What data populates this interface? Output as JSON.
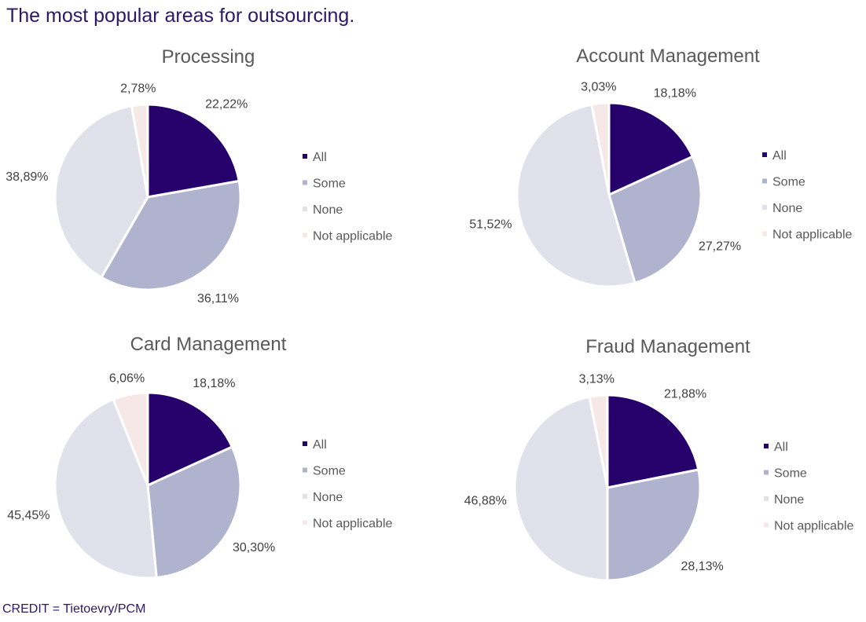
{
  "title": "The most popular areas for outsourcing.",
  "credit": "CREDIT = Tietoevry/PCM",
  "colors": {
    "All": "#26006b",
    "Some": "#b0b3ce",
    "None": "#e1e1eb",
    "Not applicable": "#f5e8e6"
  },
  "chart_data": [
    {
      "type": "pie",
      "title": "Processing",
      "categories": [
        "All",
        "Some",
        "None",
        "Not applicable"
      ],
      "values": [
        22.22,
        36.11,
        38.89,
        2.78
      ],
      "labels": [
        "22,22%",
        "36,11%",
        "38,89%",
        "2,78%"
      ],
      "legend": "right"
    },
    {
      "type": "pie",
      "title": "Account Management",
      "categories": [
        "All",
        "Some",
        "None",
        "Not applicable"
      ],
      "values": [
        18.18,
        27.27,
        51.52,
        3.03
      ],
      "labels": [
        "18,18%",
        "27,27%",
        "51,52%",
        "3,03%"
      ],
      "legend": "right"
    },
    {
      "type": "pie",
      "title": "Card Management",
      "categories": [
        "All",
        "Some",
        "None",
        "Not applicable"
      ],
      "values": [
        18.18,
        30.3,
        45.45,
        6.06
      ],
      "labels": [
        "18,18%",
        "30,30%",
        "45,45%",
        "6,06%"
      ],
      "legend": "right"
    },
    {
      "type": "pie",
      "title": "Fraud Management",
      "categories": [
        "All",
        "Some",
        "None",
        "Not applicable"
      ],
      "values": [
        21.88,
        28.13,
        46.88,
        3.13
      ],
      "labels": [
        "21,88%",
        "28,13%",
        "46,88%",
        "3,13%"
      ],
      "legend": "right"
    }
  ]
}
